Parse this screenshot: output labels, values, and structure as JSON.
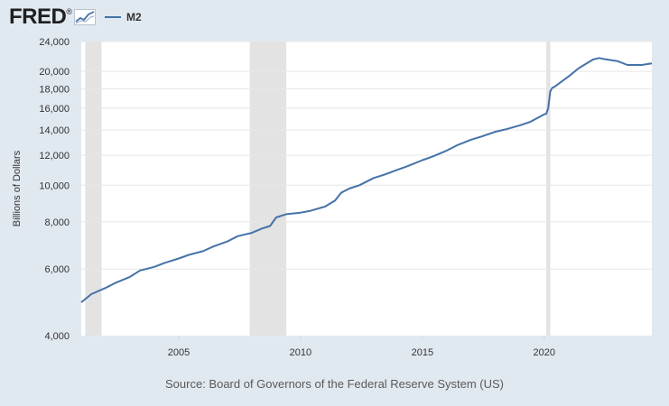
{
  "logo": {
    "text": "FRED",
    "trademark": "®",
    "icon": "fred-chart-icon"
  },
  "colors": {
    "background": "#e1e9f0",
    "plot": "#ffffff",
    "series": "#4572a7",
    "recession": "#e3e3e3"
  },
  "source": "Source: Board of Governors of the Federal Reserve System (US)",
  "chart_data": {
    "type": "line",
    "title": "",
    "xlabel": "",
    "ylabel": "Billions of Dollars",
    "y_scale": "log",
    "ylim": [
      4000,
      24000
    ],
    "xlim": [
      "2001-01-01",
      "2024-06-01"
    ],
    "y_ticks": [
      4000,
      6000,
      8000,
      10000,
      12000,
      14000,
      16000,
      18000,
      20000,
      24000
    ],
    "y_tick_labels": [
      "4,000",
      "6,000",
      "8,000",
      "10,000",
      "12,000",
      "14,000",
      "16,000",
      "18,000",
      "20,000",
      "24,000"
    ],
    "x_ticks": [
      "2005-01-01",
      "2010-01-01",
      "2015-01-01",
      "2020-01-01"
    ],
    "x_tick_labels": [
      "2005",
      "2010",
      "2015",
      "2020"
    ],
    "grid": true,
    "legend": "top-left",
    "recessions": [
      {
        "start": "2001-03-01",
        "end": "2001-11-01"
      },
      {
        "start": "2007-12-01",
        "end": "2009-06-01"
      },
      {
        "start": "2020-02-01",
        "end": "2020-04-01"
      }
    ],
    "series": [
      {
        "name": "M2",
        "points": [
          [
            "2001-01-01",
            4900
          ],
          [
            "2001-06-01",
            5150
          ],
          [
            "2002-01-01",
            5350
          ],
          [
            "2002-06-01",
            5520
          ],
          [
            "2003-01-01",
            5720
          ],
          [
            "2003-06-01",
            5950
          ],
          [
            "2004-01-01",
            6080
          ],
          [
            "2004-06-01",
            6230
          ],
          [
            "2005-01-01",
            6400
          ],
          [
            "2005-06-01",
            6540
          ],
          [
            "2006-01-01",
            6690
          ],
          [
            "2006-06-01",
            6880
          ],
          [
            "2007-01-01",
            7100
          ],
          [
            "2007-06-01",
            7330
          ],
          [
            "2008-01-01",
            7480
          ],
          [
            "2008-06-01",
            7680
          ],
          [
            "2008-10-01",
            7800
          ],
          [
            "2009-01-01",
            8220
          ],
          [
            "2009-06-01",
            8380
          ],
          [
            "2010-01-01",
            8460
          ],
          [
            "2010-06-01",
            8560
          ],
          [
            "2011-01-01",
            8780
          ],
          [
            "2011-06-01",
            9100
          ],
          [
            "2011-09-01",
            9550
          ],
          [
            "2012-01-01",
            9800
          ],
          [
            "2012-06-01",
            10000
          ],
          [
            "2013-01-01",
            10450
          ],
          [
            "2013-06-01",
            10650
          ],
          [
            "2014-01-01",
            11000
          ],
          [
            "2014-06-01",
            11250
          ],
          [
            "2015-01-01",
            11650
          ],
          [
            "2015-06-01",
            11900
          ],
          [
            "2016-01-01",
            12350
          ],
          [
            "2016-06-01",
            12750
          ],
          [
            "2017-01-01",
            13200
          ],
          [
            "2017-06-01",
            13450
          ],
          [
            "2018-01-01",
            13850
          ],
          [
            "2018-06-01",
            14050
          ],
          [
            "2019-01-01",
            14400
          ],
          [
            "2019-06-01",
            14700
          ],
          [
            "2020-01-01",
            15400
          ],
          [
            "2020-02-01",
            15450
          ],
          [
            "2020-03-01",
            16000
          ],
          [
            "2020-04-01",
            17700
          ],
          [
            "2020-05-01",
            18100
          ],
          [
            "2020-06-01",
            18200
          ],
          [
            "2021-01-01",
            19400
          ],
          [
            "2021-06-01",
            20400
          ],
          [
            "2022-01-01",
            21500
          ],
          [
            "2022-04-01",
            21700
          ],
          [
            "2022-06-01",
            21600
          ],
          [
            "2023-01-01",
            21300
          ],
          [
            "2023-06-01",
            20800
          ],
          [
            "2024-01-01",
            20800
          ],
          [
            "2024-06-01",
            21000
          ]
        ]
      }
    ]
  }
}
